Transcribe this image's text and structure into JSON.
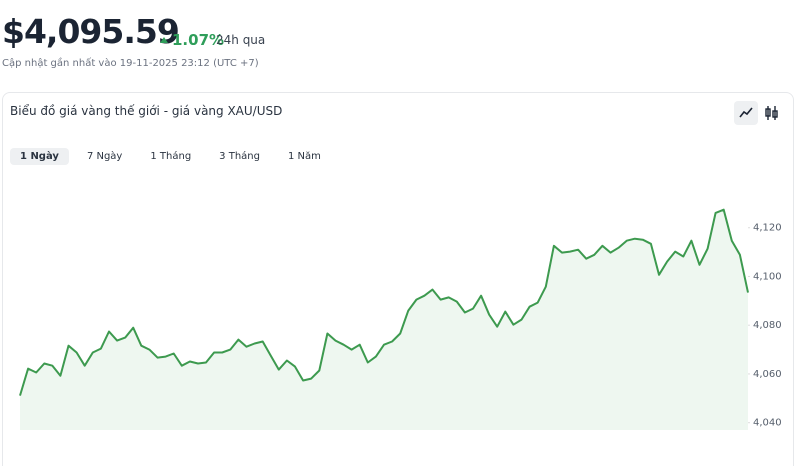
{
  "header": {
    "price": "$4,095.59",
    "change": "1.07%",
    "period": "24h qua",
    "updated": "Cập nhật gần nhất vào 19-11-2025 23:12 (UTC +7)"
  },
  "card": {
    "title": "Biểu đồ giá vàng thế giới - giá vàng XAU/USD",
    "tabs": [
      "1 Ngày",
      "7 Ngày",
      "1 Tháng",
      "3 Tháng",
      "1 Năm"
    ]
  },
  "chart_data": {
    "type": "line",
    "color": "#3d9a4f",
    "fill": "#eef7f0",
    "values": [
      4051.1,
      4062.2,
      4060.6,
      4064.3,
      4063.4,
      4059.3,
      4071.6,
      4068.8,
      4063.4,
      4068.8,
      4070.4,
      4077.4,
      4073.7,
      4074.9,
      4079.0,
      4071.6,
      4070.0,
      4066.7,
      4067.1,
      4068.4,
      4063.4,
      4065.1,
      4064.3,
      4064.7,
      4068.8,
      4068.8,
      4070.0,
      4074.1,
      4071.2,
      4072.5,
      4073.3,
      4067.5,
      4061.8,
      4065.5,
      4063.0,
      4057.3,
      4058.1,
      4061.4,
      4076.6,
      4073.7,
      4072.0,
      4070.0,
      4072.0,
      4064.7,
      4067.1,
      4072.0,
      4073.3,
      4076.6,
      4086.0,
      4090.5,
      4092.1,
      4094.6,
      4090.5,
      4091.4,
      4089.7,
      4085.2,
      4086.8,
      4092.1,
      4084.3,
      4079.4,
      4085.6,
      4080.2,
      4082.3,
      4087.6,
      4089.3,
      4095.8,
      4112.6,
      4109.8,
      4110.2,
      4111.0,
      4107.3,
      4108.9,
      4112.6,
      4109.8,
      4111.8,
      4114.7,
      4115.5,
      4115.1,
      4113.4,
      4100.7,
      4106.1,
      4110.2,
      4108.2,
      4114.7,
      4104.8,
      4111.4,
      4126.1,
      4127.4,
      4114.7,
      4108.9,
      4093.4
    ],
    "ylim": [
      4037,
      4140
    ],
    "yticks": [
      {
        "value": 4040,
        "label": "4,040"
      },
      {
        "value": 4060,
        "label": "4,060"
      },
      {
        "value": 4080,
        "label": "4,080"
      },
      {
        "value": 4100,
        "label": "4,100"
      },
      {
        "value": 4120,
        "label": "4,120"
      }
    ]
  }
}
